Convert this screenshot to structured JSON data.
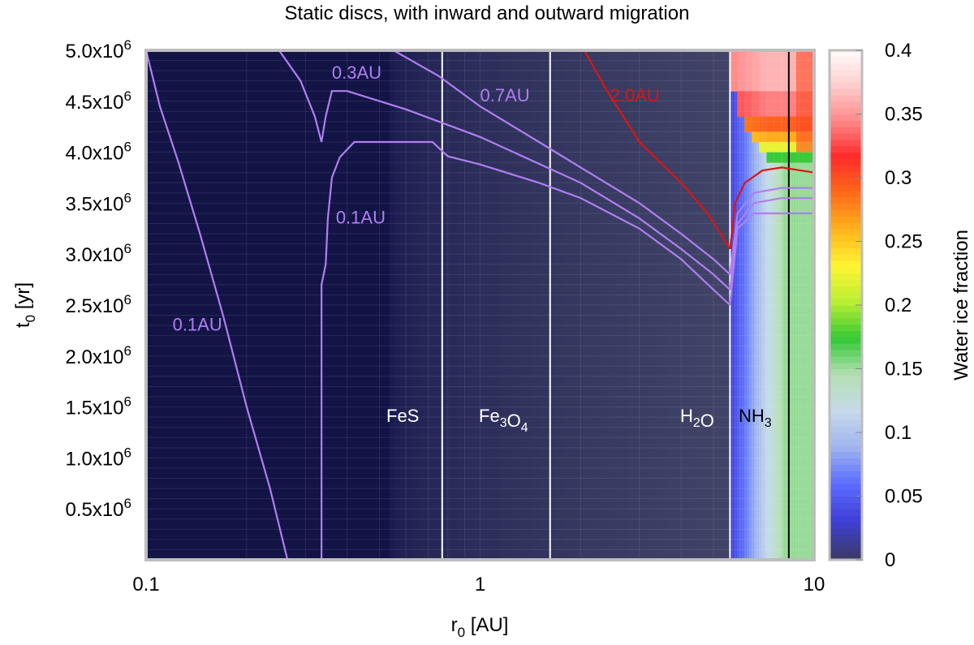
{
  "chart_data": {
    "type": "heatmap",
    "title": "Static discs, with inward and outward migration",
    "xlabel": {
      "main": "r",
      "sub": "0",
      "rest": " [AU]"
    },
    "ylabel": {
      "main": "t",
      "sub": "0",
      "rest": " [yr]"
    },
    "x_scale": "log",
    "xlim": [
      0.1,
      10
    ],
    "ylim": [
      0,
      5000000
    ],
    "x_ticks": [
      {
        "value": 0.1,
        "label": "0.1"
      },
      {
        "value": 1,
        "label": "1"
      },
      {
        "value": 10,
        "label": "10"
      }
    ],
    "y_ticks": [
      {
        "value": 500000,
        "label": "0.5x10",
        "exp": "6"
      },
      {
        "value": 1000000,
        "label": "1.0x10",
        "exp": "6"
      },
      {
        "value": 1500000,
        "label": "1.5x10",
        "exp": "6"
      },
      {
        "value": 2000000,
        "label": "2.0x10",
        "exp": "6"
      },
      {
        "value": 2500000,
        "label": "2.5x10",
        "exp": "6"
      },
      {
        "value": 3000000,
        "label": "3.0x10",
        "exp": "6"
      },
      {
        "value": 3500000,
        "label": "3.5x10",
        "exp": "6"
      },
      {
        "value": 4000000,
        "label": "4.0x10",
        "exp": "6"
      },
      {
        "value": 4500000,
        "label": "4.5x10",
        "exp": "6"
      },
      {
        "value": 5000000,
        "label": "5.0x10",
        "exp": "6"
      }
    ],
    "colorbar": {
      "label": "Water ice fraction",
      "range": [
        0,
        0.4
      ],
      "ticks": [
        "0",
        "0.05",
        "0.1",
        "0.15",
        "0.2",
        "0.25",
        "0.3",
        "0.35",
        "0.4"
      ],
      "colors": [
        "#3a3a6b",
        "#3f3fd6",
        "#5a6cff",
        "#9fb4ef",
        "#c6daea",
        "#b5e0b5",
        "#34c934",
        "#b9ef33",
        "#fff533",
        "#ffb31c",
        "#ff6a1a",
        "#ff2a2a",
        "#ff8a8a",
        "#ffd0d0",
        "#ffffff"
      ]
    },
    "ice_lines": [
      {
        "species": "FeS",
        "r": 0.77,
        "color": "#ffffff",
        "label": [
          {
            "t": "FeS"
          }
        ]
      },
      {
        "species": "Fe3O4",
        "r": 1.62,
        "color": "#ffffff",
        "label": [
          {
            "t": "Fe"
          },
          {
            "t": "3",
            "sub": true
          },
          {
            "t": "O"
          },
          {
            "t": "4",
            "sub": true
          }
        ]
      },
      {
        "species": "H2O",
        "r": 5.6,
        "color": "#ffffff",
        "label": [
          {
            "t": "H"
          },
          {
            "t": "2",
            "sub": true
          },
          {
            "t": "O"
          }
        ]
      },
      {
        "species": "NH3",
        "r": 8.4,
        "color": "#000000",
        "label": [
          {
            "t": "NH"
          },
          {
            "t": "3",
            "sub": true
          }
        ]
      }
    ],
    "series": [
      {
        "name": "0.1AU",
        "color": "#b07ef0",
        "points": [
          [
            0.1,
            5000000
          ],
          [
            0.11,
            4450000
          ],
          [
            0.125,
            3900000
          ],
          [
            0.145,
            3200000
          ],
          [
            0.17,
            2400000
          ],
          [
            0.2,
            1500000
          ],
          [
            0.235,
            700000
          ],
          [
            0.265,
            0
          ]
        ]
      },
      {
        "name": "0.1AU",
        "color": "#b07ef0",
        "points": [
          [
            0.335,
            0
          ],
          [
            0.335,
            2700000
          ],
          [
            0.345,
            2900000
          ],
          [
            0.35,
            3350000
          ],
          [
            0.36,
            3750000
          ],
          [
            0.38,
            3950000
          ],
          [
            0.42,
            4100000
          ],
          [
            0.72,
            4100000
          ],
          [
            0.8,
            3960000
          ],
          [
            1.0,
            3880000
          ],
          [
            1.5,
            3700000
          ],
          [
            2.0,
            3550000
          ],
          [
            3.0,
            3250000
          ],
          [
            4.0,
            2950000
          ],
          [
            5.0,
            2650000
          ],
          [
            5.6,
            2500000
          ]
        ]
      },
      {
        "name": "0.3AU",
        "color": "#b07ef0",
        "points": [
          [
            0.25,
            5000000
          ],
          [
            0.29,
            4700000
          ],
          [
            0.32,
            4350000
          ],
          [
            0.335,
            4100000
          ],
          [
            0.345,
            4350000
          ],
          [
            0.36,
            4600000
          ],
          [
            0.4,
            4600000
          ],
          [
            0.6,
            4420000
          ],
          [
            1.0,
            4150000
          ],
          [
            2.0,
            3700000
          ],
          [
            3.0,
            3350000
          ],
          [
            4.0,
            3050000
          ],
          [
            5.0,
            2800000
          ],
          [
            5.6,
            2650000
          ]
        ]
      },
      {
        "name": "0.7AU",
        "color": "#b07ef0",
        "points": [
          [
            0.55,
            5000000
          ],
          [
            0.75,
            4750000
          ],
          [
            1.0,
            4450000
          ],
          [
            1.5,
            4100000
          ],
          [
            2.0,
            3850000
          ],
          [
            3.0,
            3500000
          ],
          [
            4.0,
            3200000
          ],
          [
            5.0,
            2950000
          ],
          [
            5.6,
            2800000
          ]
        ]
      },
      {
        "name": "2.0AU",
        "color": "#dd1414",
        "points": [
          [
            2.05,
            5000000
          ],
          [
            2.4,
            4600000
          ],
          [
            3.0,
            4100000
          ],
          [
            4.0,
            3700000
          ],
          [
            4.8,
            3400000
          ],
          [
            5.6,
            3050000
          ]
        ]
      }
    ],
    "outer_branches": [
      {
        "color": "#dd1414",
        "points": [
          [
            5.6,
            3050000
          ],
          [
            5.8,
            3500000
          ],
          [
            6.2,
            3700000
          ],
          [
            7.0,
            3820000
          ],
          [
            8.0,
            3850000
          ],
          [
            10.0,
            3800000
          ]
        ]
      },
      {
        "color": "#b07ef0",
        "points": [
          [
            5.6,
            2800000
          ],
          [
            5.9,
            3400000
          ],
          [
            6.6,
            3600000
          ],
          [
            8.0,
            3650000
          ],
          [
            10.0,
            3650000
          ]
        ]
      },
      {
        "color": "#b07ef0",
        "points": [
          [
            5.6,
            2650000
          ],
          [
            5.9,
            3300000
          ],
          [
            6.6,
            3500000
          ],
          [
            8.0,
            3550000
          ],
          [
            10.0,
            3550000
          ]
        ]
      },
      {
        "color": "#b07ef0",
        "points": [
          [
            5.6,
            2500000
          ],
          [
            5.9,
            3250000
          ],
          [
            6.6,
            3400000
          ],
          [
            10.0,
            3400000
          ]
        ]
      }
    ],
    "annotations": [
      {
        "text": "0.1AU",
        "x": 0.12,
        "y": 2250000,
        "color": "#b07ef0"
      },
      {
        "text": "0.1AU",
        "x": 0.37,
        "y": 3300000,
        "color": "#b07ef0"
      },
      {
        "text": "0.3AU",
        "x": 0.36,
        "y": 4720000,
        "color": "#b07ef0"
      },
      {
        "text": "0.7AU",
        "x": 1.0,
        "y": 4500000,
        "color": "#b07ef0"
      },
      {
        "text": "2.0AU",
        "x": 2.45,
        "y": 4500000,
        "color": "#dd1414"
      }
    ],
    "grid": true
  }
}
